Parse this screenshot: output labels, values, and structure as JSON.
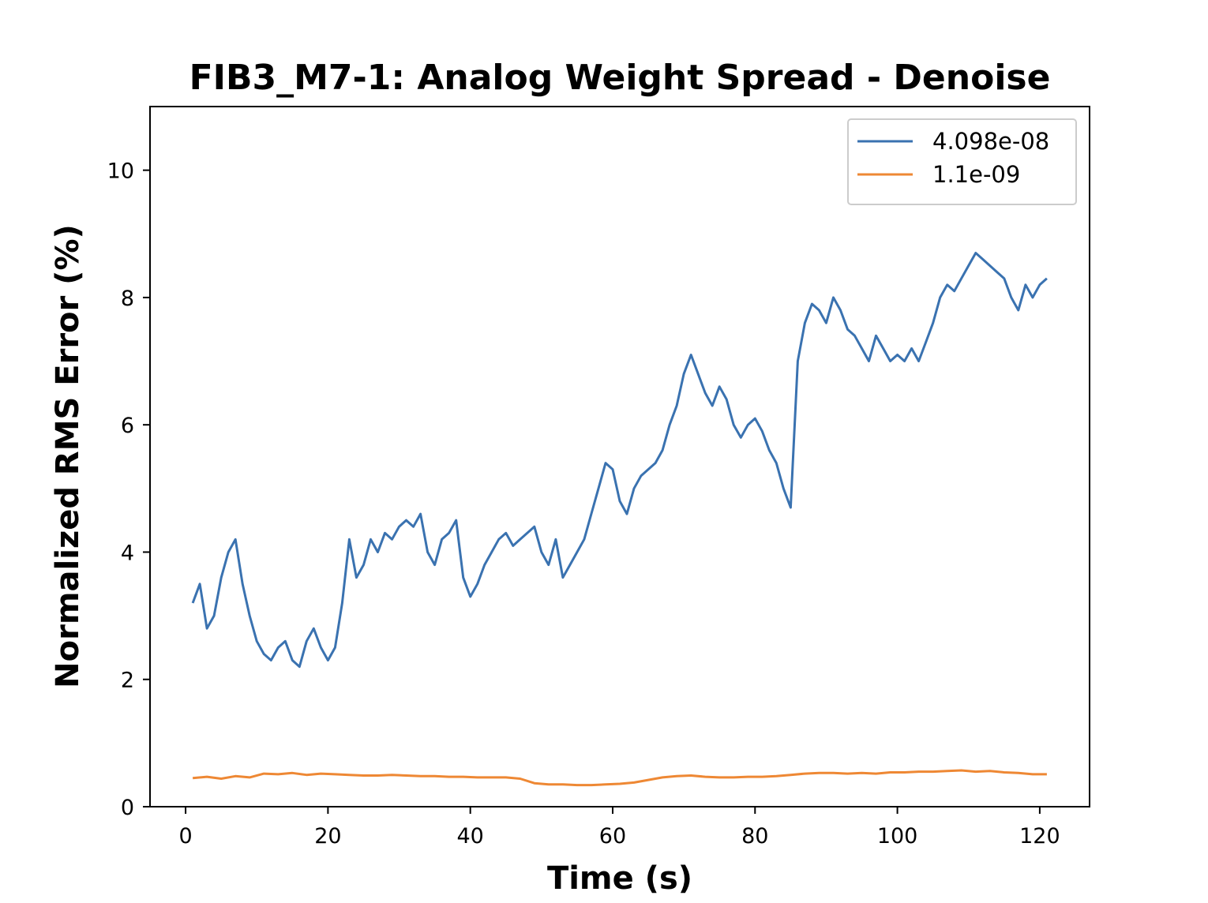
{
  "chart_data": {
    "type": "line",
    "title": "FIB3_M7-1: Analog Weight Spread - Denoise",
    "xlabel": "Time (s)",
    "ylabel": "Normalized RMS Error (%)",
    "xlim": [
      -5,
      127
    ],
    "ylim": [
      0,
      11
    ],
    "xticks": [
      0,
      20,
      40,
      60,
      80,
      100,
      120
    ],
    "yticks": [
      0,
      2,
      4,
      6,
      8,
      10
    ],
    "grid": false,
    "legend_position": "top-right",
    "series": [
      {
        "name": "4.098e-08",
        "color": "#3a72b0",
        "x": [
          1,
          2,
          3,
          4,
          5,
          6,
          7,
          8,
          9,
          10,
          11,
          12,
          13,
          14,
          15,
          16,
          17,
          18,
          19,
          20,
          21,
          22,
          23,
          24,
          25,
          26,
          27,
          28,
          29,
          30,
          31,
          32,
          33,
          34,
          35,
          36,
          37,
          38,
          39,
          40,
          41,
          42,
          43,
          44,
          45,
          46,
          47,
          48,
          49,
          50,
          51,
          52,
          53,
          54,
          55,
          56,
          57,
          58,
          59,
          60,
          61,
          62,
          63,
          64,
          65,
          66,
          67,
          68,
          69,
          70,
          71,
          72,
          73,
          74,
          75,
          76,
          77,
          78,
          79,
          80,
          81,
          82,
          83,
          84,
          85,
          86,
          87,
          88,
          89,
          90,
          91,
          92,
          93,
          94,
          95,
          96,
          97,
          98,
          99,
          100,
          101,
          102,
          103,
          104,
          105,
          106,
          107,
          108,
          109,
          110,
          111,
          112,
          113,
          114,
          115,
          116,
          117,
          118,
          119,
          120,
          121
        ],
        "y": [
          3.2,
          3.5,
          2.8,
          3.0,
          3.6,
          4.0,
          4.2,
          3.5,
          3.0,
          2.6,
          2.4,
          2.3,
          2.5,
          2.6,
          2.3,
          2.2,
          2.6,
          2.8,
          2.5,
          2.3,
          2.5,
          3.2,
          4.2,
          3.6,
          3.8,
          4.2,
          4.0,
          4.3,
          4.2,
          4.4,
          4.5,
          4.4,
          4.6,
          4.0,
          3.8,
          4.2,
          4.3,
          4.5,
          3.6,
          3.3,
          3.5,
          3.8,
          4.0,
          4.2,
          4.3,
          4.1,
          4.2,
          4.3,
          4.4,
          4.0,
          3.8,
          4.2,
          3.6,
          3.8,
          4.0,
          4.2,
          4.6,
          5.0,
          5.4,
          5.3,
          4.8,
          4.6,
          5.0,
          5.2,
          5.3,
          5.4,
          5.6,
          6.0,
          6.3,
          6.8,
          7.1,
          6.8,
          6.5,
          6.3,
          6.6,
          6.4,
          6.0,
          5.8,
          6.0,
          6.1,
          5.9,
          5.6,
          5.4,
          5.0,
          4.7,
          7.0,
          7.6,
          7.9,
          7.8,
          7.6,
          8.0,
          7.8,
          7.5,
          7.4,
          7.2,
          7.0,
          7.4,
          7.2,
          7.0,
          7.1,
          7.0,
          7.2,
          7.0,
          7.3,
          7.6,
          8.0,
          8.2,
          8.1,
          8.3,
          8.5,
          8.7,
          8.6,
          8.5,
          8.4,
          8.3,
          8.0,
          7.8,
          8.2,
          8.0,
          8.2,
          8.3
        ]
      },
      {
        "name": "1.1e-09",
        "color": "#ee8834",
        "x": [
          1,
          3,
          5,
          7,
          9,
          11,
          13,
          15,
          17,
          19,
          21,
          23,
          25,
          27,
          29,
          31,
          33,
          35,
          37,
          39,
          41,
          43,
          45,
          47,
          49,
          51,
          53,
          55,
          57,
          59,
          61,
          63,
          65,
          67,
          69,
          71,
          73,
          75,
          77,
          79,
          81,
          83,
          85,
          87,
          89,
          91,
          93,
          95,
          97,
          99,
          101,
          103,
          105,
          107,
          109,
          111,
          113,
          115,
          117,
          119,
          121
        ],
        "y": [
          0.45,
          0.47,
          0.44,
          0.48,
          0.46,
          0.52,
          0.51,
          0.53,
          0.5,
          0.52,
          0.51,
          0.5,
          0.49,
          0.49,
          0.5,
          0.49,
          0.48,
          0.48,
          0.47,
          0.47,
          0.46,
          0.46,
          0.46,
          0.44,
          0.37,
          0.35,
          0.35,
          0.34,
          0.34,
          0.35,
          0.36,
          0.38,
          0.42,
          0.46,
          0.48,
          0.49,
          0.47,
          0.46,
          0.46,
          0.47,
          0.47,
          0.48,
          0.5,
          0.52,
          0.53,
          0.53,
          0.52,
          0.53,
          0.52,
          0.54,
          0.54,
          0.55,
          0.55,
          0.56,
          0.57,
          0.55,
          0.56,
          0.54,
          0.53,
          0.51,
          0.51
        ]
      }
    ]
  }
}
